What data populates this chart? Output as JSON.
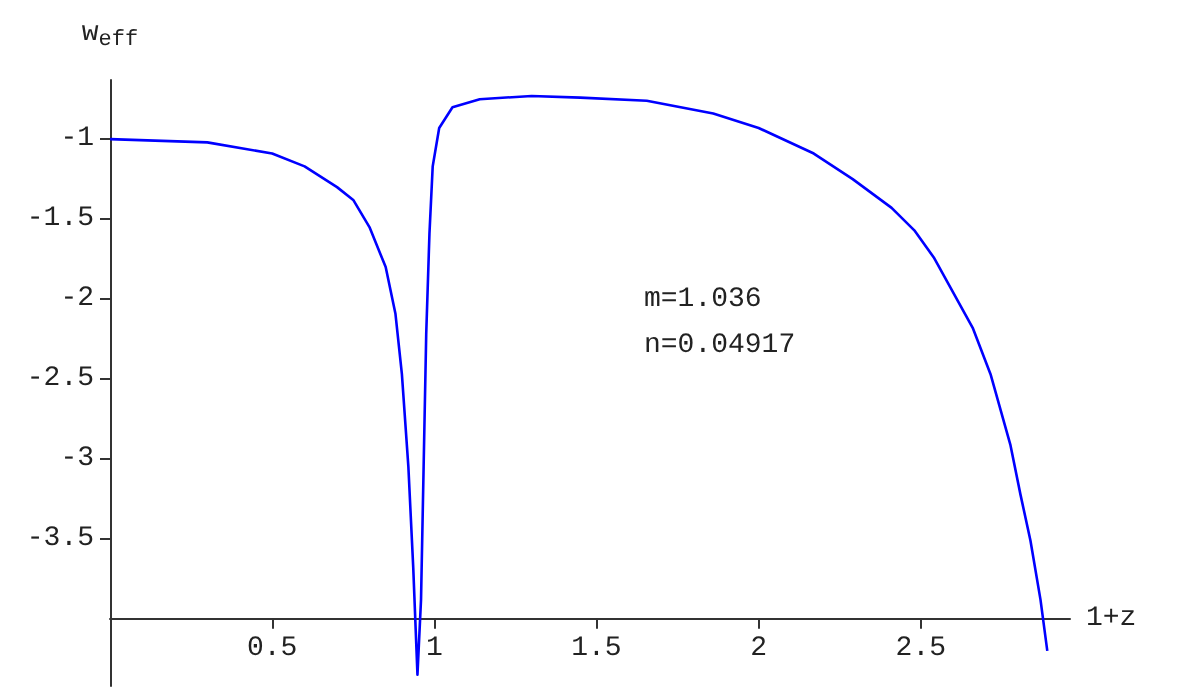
{
  "chart_data": {
    "type": "line",
    "xlabel": "1+z",
    "ylabel": "w$_{eff}$",
    "annotations": [
      "m=1.036",
      "n=0.04917"
    ],
    "xlim": [
      0,
      2.96
    ],
    "ylim": [
      -4.42,
      -0.63
    ],
    "xticks": [
      0.5,
      1,
      1.5,
      2,
      2.5
    ],
    "yticks": [
      -1,
      -1.5,
      -2,
      -2.5,
      -3,
      -3.5
    ],
    "grid": false,
    "marker": "none",
    "line_style": "solid",
    "series": [
      {
        "color": "#0000ff",
        "x": [
          0,
          0.3,
          0.5,
          0.6,
          0.7,
          0.75,
          0.8,
          0.85,
          0.88,
          0.9,
          0.92,
          0.935,
          0.948,
          0.959,
          0.967,
          0.975,
          0.985,
          0.995,
          1.015,
          1.056,
          1.14,
          1.3,
          1.45,
          1.655,
          1.86,
          2,
          2.17,
          2.29,
          2.41,
          2.48,
          2.54,
          2.66,
          2.715,
          2.776,
          2.807,
          2.838,
          2.869,
          2.89
        ],
        "values": [
          -1,
          -1.02,
          -1.09,
          -1.17,
          -1.3,
          -1.38,
          -1.55,
          -1.8,
          -2.09,
          -2.47,
          -3.05,
          -3.68,
          -4.35,
          -3.88,
          -3.05,
          -2.22,
          -1.59,
          -1.17,
          -0.93,
          -0.8,
          -0.75,
          -0.73,
          -0.74,
          -0.76,
          -0.84,
          -0.93,
          -1.09,
          -1.25,
          -1.43,
          -1.57,
          -1.74,
          -2.18,
          -2.47,
          -2.91,
          -3.22,
          -3.51,
          -3.88,
          -4.2
        ]
      }
    ]
  }
}
